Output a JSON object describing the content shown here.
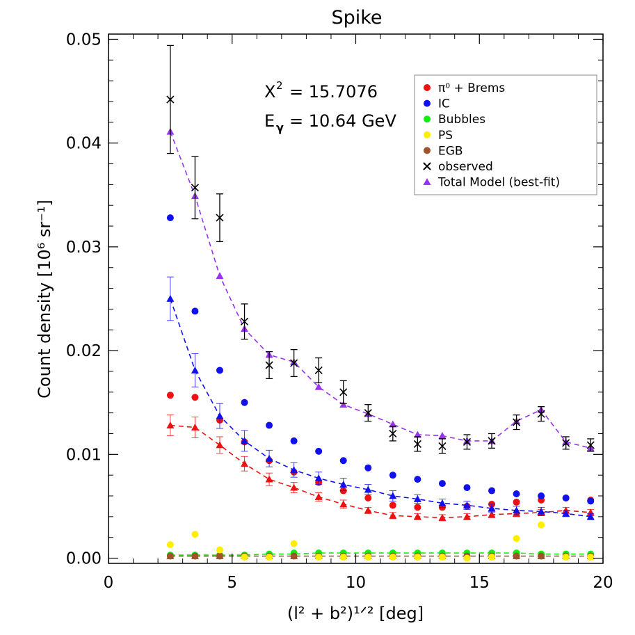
{
  "chart_data": {
    "type": "scatter",
    "title": "Spike",
    "xlabel": "(l² + b²)¹ᐟ² [deg]",
    "ylabel": "Count density [10⁶ sr⁻¹]",
    "xlim": [
      0,
      20
    ],
    "ylim": [
      -0.0005,
      0.0505
    ],
    "xticks": [
      0,
      5,
      10,
      15,
      20
    ],
    "xtick_labels": [
      "0",
      "5",
      "10",
      "15",
      "20"
    ],
    "yticks": [
      0,
      0.01,
      0.02,
      0.03,
      0.04,
      0.05
    ],
    "ytick_labels": [
      "0.00",
      "0.01",
      "0.02",
      "0.03",
      "0.04",
      "0.05"
    ],
    "annotations": {
      "chi2_label": "X",
      "chi2_value": "= 15.7076",
      "energy_label": "E",
      "energy_value": "= 10.64 GeV"
    },
    "legend_position": "top-right",
    "x": [
      2.5,
      3.5,
      4.5,
      5.5,
      6.5,
      7.5,
      8.5,
      9.5,
      10.5,
      11.5,
      12.5,
      13.5,
      14.5,
      15.5,
      16.5,
      17.5,
      18.5,
      19.5
    ],
    "series": [
      {
        "name": "π⁰ + Brems",
        "color": "#ee1111",
        "marker": "circle",
        "values": [
          0.0157,
          0.0155,
          0.0133,
          0.0112,
          0.0094,
          0.0083,
          0.0073,
          0.0065,
          0.0058,
          0.0051,
          0.0049,
          0.0049,
          0.005,
          0.0052,
          0.0054,
          0.0056,
          0.0058,
          0.0056
        ],
        "fit_values": [
          0.0128,
          0.0126,
          0.0109,
          0.0091,
          0.0076,
          0.0068,
          0.0059,
          0.0052,
          0.0046,
          0.0041,
          0.004,
          0.0039,
          0.004,
          0.0042,
          0.0043,
          0.0044,
          0.0046,
          0.0044
        ],
        "fit_errors": [
          0.001,
          0.001,
          0.0008,
          0.0007,
          0.0006,
          0.0005,
          0.0004,
          0.0004,
          0.0003,
          0.0003,
          0.0003,
          0.0003,
          0.0003,
          0.0003,
          0.0003,
          0.0003,
          0.0003,
          0.0003
        ]
      },
      {
        "name": "IC",
        "color": "#1111ee",
        "marker": "circle",
        "values": [
          0.0328,
          0.0238,
          0.0181,
          0.015,
          0.0128,
          0.0113,
          0.0103,
          0.0094,
          0.0087,
          0.008,
          0.0076,
          0.0072,
          0.0068,
          0.0065,
          0.0062,
          0.006,
          0.0058,
          0.0055
        ],
        "fit_values": [
          0.025,
          0.0181,
          0.0137,
          0.0113,
          0.0096,
          0.0085,
          0.0077,
          0.0071,
          0.0066,
          0.006,
          0.0057,
          0.0053,
          0.0051,
          0.0048,
          0.0046,
          0.0045,
          0.0043,
          0.004
        ],
        "fit_errors": [
          0.0021,
          0.0016,
          0.0012,
          0.001,
          0.0008,
          0.0007,
          0.0006,
          0.0006,
          0.0005,
          0.0005,
          0.0004,
          0.0004,
          0.0004,
          0.0004,
          0.0004,
          0.0004,
          0.0003,
          0.0003
        ]
      },
      {
        "name": "Bubbles",
        "color": "#11ee11",
        "marker": "circle",
        "values": [
          0.0003,
          0.0003,
          0.0003,
          0.0003,
          0.0004,
          0.0005,
          0.0005,
          0.0005,
          0.0005,
          0.0005,
          0.0005,
          0.0005,
          0.0005,
          0.0005,
          0.0005,
          0.0004,
          0.0004,
          0.0004
        ],
        "fit_values": [
          0.0003,
          0.0003,
          0.0003,
          0.0003,
          0.0004,
          0.0004,
          0.0005,
          0.0005,
          0.0005,
          0.0005,
          0.0005,
          0.0005,
          0.0005,
          0.0005,
          0.0005,
          0.0004,
          0.0004,
          0.0004
        ]
      },
      {
        "name": "PS",
        "color": "#ffee00",
        "marker": "circle",
        "values": [
          0.0013,
          0.0023,
          0.0008,
          0.0001,
          0.0001,
          0.0014,
          0.0001,
          0.0001,
          0.0001,
          0.0001,
          0.0001,
          0.0001,
          0.0,
          0.0001,
          0.0019,
          0.0032,
          0.0001,
          0.0001
        ]
      },
      {
        "name": "EGB",
        "color": "#a0522d",
        "marker": "circle",
        "values": [
          0.0002,
          0.0002,
          0.0002,
          0.0002,
          0.0002,
          0.0002,
          0.0002,
          0.0002,
          0.0002,
          0.0002,
          0.0002,
          0.0002,
          0.0002,
          0.0002,
          0.0002,
          0.0002,
          0.0002,
          0.0002
        ],
        "fit_values": [
          0.0002,
          0.0002,
          0.0002,
          0.0002,
          0.0002,
          0.0002,
          0.0002,
          0.0002,
          0.0002,
          0.0002,
          0.0002,
          0.0002,
          0.0002,
          0.0002,
          0.0002,
          0.0002,
          0.0002,
          0.0002
        ]
      },
      {
        "name": "observed",
        "color": "#000000",
        "marker": "x",
        "values": [
          0.0442,
          0.0357,
          0.0328,
          0.0228,
          0.0186,
          0.0188,
          0.0181,
          0.016,
          0.014,
          0.012,
          0.011,
          0.0108,
          0.0112,
          0.0113,
          0.0131,
          0.0139,
          0.0111,
          0.0109
        ],
        "errors": [
          0.0052,
          0.003,
          0.0023,
          0.0017,
          0.0013,
          0.0013,
          0.0012,
          0.0011,
          0.0008,
          0.0007,
          0.0007,
          0.0007,
          0.0007,
          0.0007,
          0.0007,
          0.0007,
          0.0006,
          0.0006
        ]
      },
      {
        "name": "Total Model (best-fit)",
        "color": "#9933ee",
        "marker": "triangle",
        "values": [
          0.0411,
          0.0349,
          0.0272,
          0.0221,
          0.0196,
          0.0189,
          0.0165,
          0.0148,
          0.0139,
          0.0129,
          0.0119,
          0.0118,
          0.0113,
          0.0113,
          0.0132,
          0.0143,
          0.0112,
          0.0106
        ],
        "line": true
      }
    ]
  }
}
